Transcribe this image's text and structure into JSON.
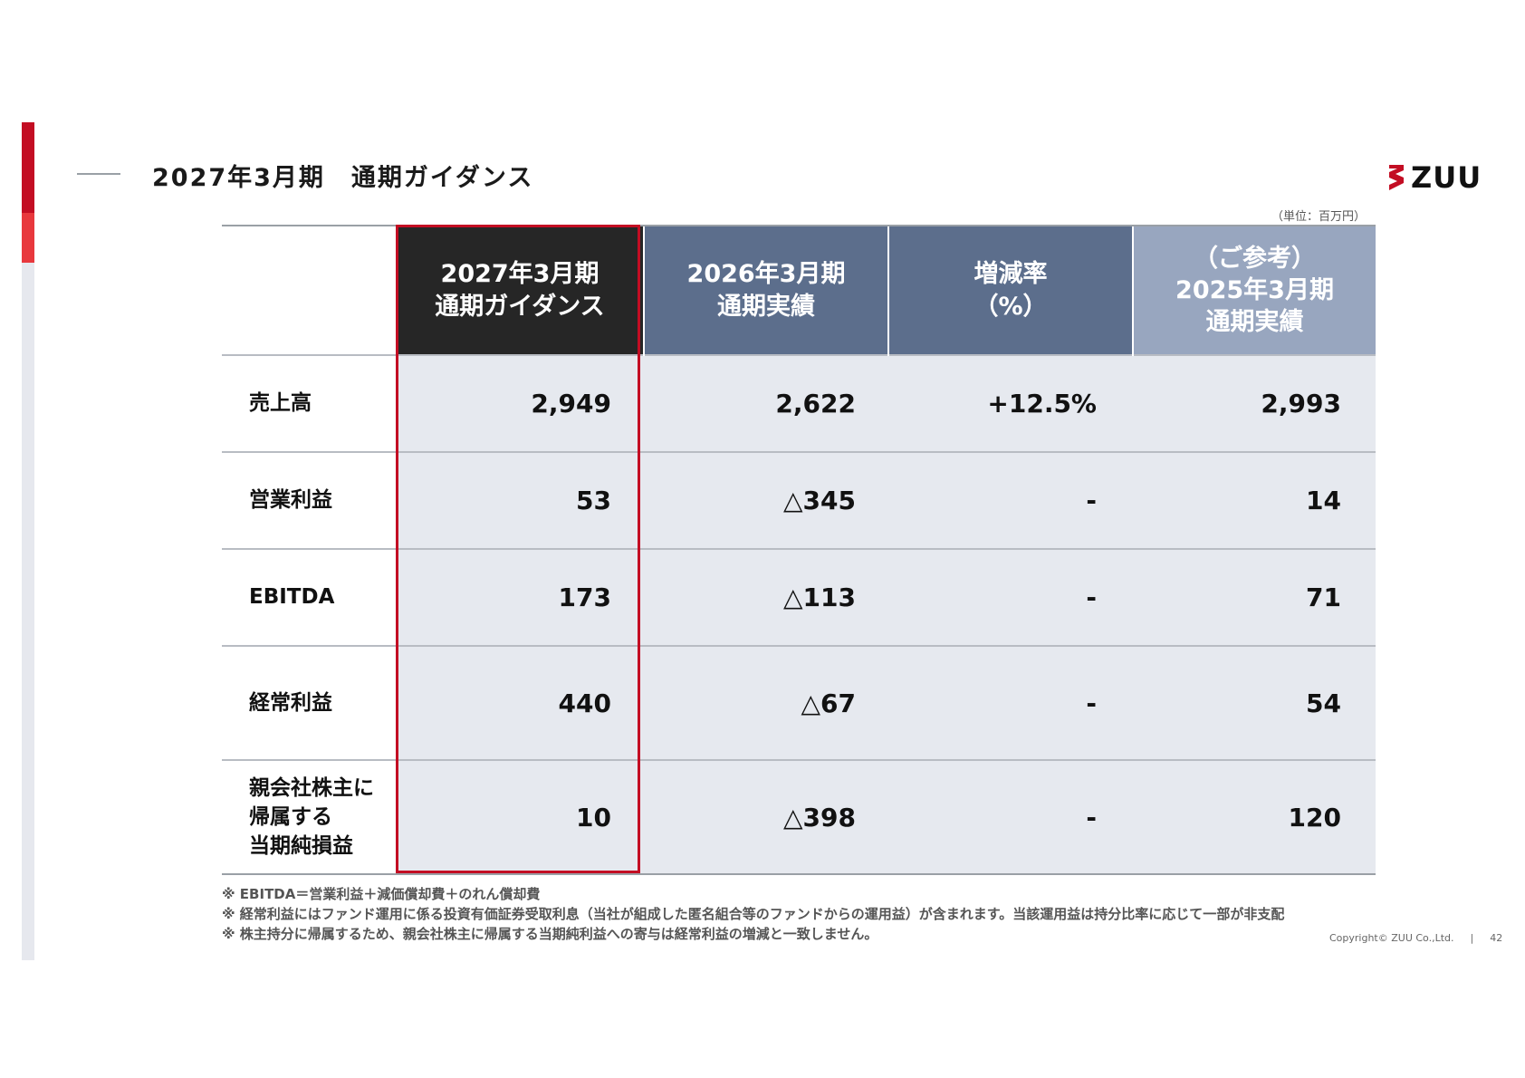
{
  "header": {
    "title": "2027年3月期　通期ガイダンス",
    "logo_text": "ZUU",
    "unit": "（単位：百万円）"
  },
  "colors": {
    "accent_red": "#c30d23",
    "header_dark": "#262626",
    "header_blue": "#5c6e8c",
    "header_light_blue": "#98a6bf",
    "cell_bg": "#e6e9ef"
  },
  "table": {
    "columns": [
      "2027年3月期\n通期ガイダンス",
      "2026年3月期\n通期実績",
      "増減率\n（%）",
      "（ご参考）\n2025年3月期\n通期実績"
    ],
    "rows": [
      {
        "label": "売上高",
        "values": [
          "2,949",
          "2,622",
          "+12.5%",
          "2,993"
        ]
      },
      {
        "label": "営業利益",
        "values": [
          "53",
          "△345",
          "-",
          "14"
        ]
      },
      {
        "label": "EBITDA",
        "values": [
          "173",
          "△113",
          "-",
          "71"
        ]
      },
      {
        "label": "経常利益",
        "values": [
          "440",
          "△67",
          "-",
          "54"
        ]
      },
      {
        "label": "親会社株主に\n帰属する\n当期純損益",
        "values": [
          "10",
          "△398",
          "-",
          "120"
        ]
      }
    ]
  },
  "notes": [
    "※ EBITDA＝営業利益＋減価償却費＋のれん償却費",
    "※ 経常利益にはファンド運用に係る投資有価証券受取利息（当社が組成した匿名組合等のファンドからの運用益）が含まれます。当該運用益は持分比率に応じて一部が非支配",
    "※ 株主持分に帰属するため、親会社株主に帰属する当期純利益への寄与は経常利益の増減と一致しません。"
  ],
  "footer": {
    "copyright": "Copyright© ZUU Co.,Ltd.",
    "separator": "|",
    "page_number": "42"
  }
}
